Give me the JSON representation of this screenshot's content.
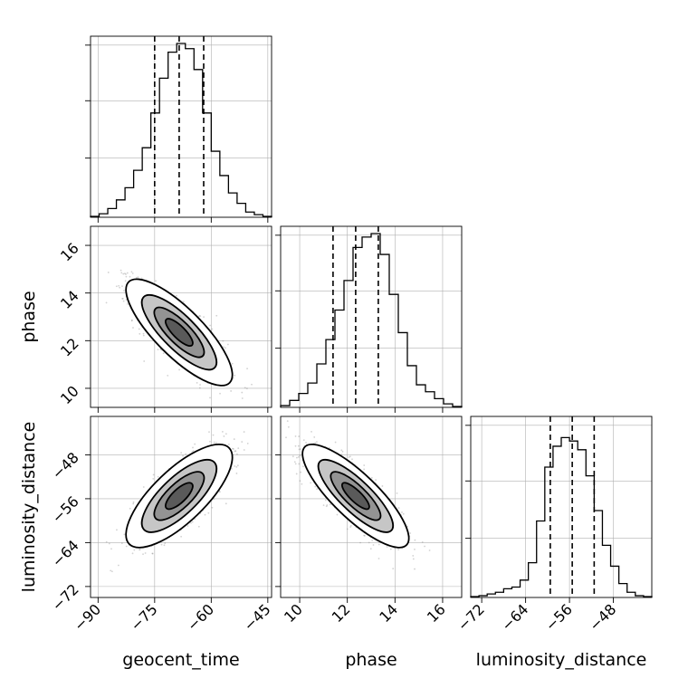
{
  "chart_data": {
    "type": "corner",
    "parameters": [
      "geocent_time",
      "phase",
      "luminosity_distance"
    ],
    "axis_labels": {
      "geocent_time": "geocent_time",
      "phase": "phase",
      "luminosity_distance": "luminosity_distance"
    },
    "ranges": {
      "geocent_time": [
        -92,
        -44
      ],
      "phase": [
        9.2,
        16.8
      ],
      "luminosity_distance": [
        -74,
        -41
      ]
    },
    "ticks": {
      "geocent_time": [
        -90,
        -75,
        -60,
        -45
      ],
      "phase": [
        10,
        12,
        14,
        16
      ],
      "luminosity_distance": [
        -72,
        -64,
        -56,
        -48
      ]
    },
    "tick_labels": {
      "geocent_time": [
        "−90",
        "−75",
        "−60",
        "−45"
      ],
      "phase": [
        "10",
        "12",
        "14",
        "16"
      ],
      "luminosity_distance": [
        "−72",
        "−64",
        "−56",
        "−48"
      ]
    },
    "quantiles": {
      "geocent_time": [
        -75,
        -68.5,
        -62
      ],
      "phase": [
        11.4,
        12.35,
        13.3
      ],
      "luminosity_distance": [
        -59.5,
        -55.5,
        -51.5
      ]
    },
    "histograms": {
      "geocent_time": [
        0.005,
        0.02,
        0.05,
        0.1,
        0.17,
        0.27,
        0.4,
        0.6,
        0.8,
        0.95,
        1.0,
        0.97,
        0.85,
        0.6,
        0.38,
        0.24,
        0.14,
        0.08,
        0.03,
        0.015,
        0.005
      ],
      "phase": [
        0.01,
        0.04,
        0.08,
        0.14,
        0.25,
        0.39,
        0.56,
        0.73,
        0.92,
        0.98,
        1.0,
        0.88,
        0.65,
        0.43,
        0.24,
        0.13,
        0.09,
        0.05,
        0.02,
        0.005
      ],
      "luminosity_distance": [
        0.005,
        0.01,
        0.02,
        0.03,
        0.05,
        0.06,
        0.1,
        0.2,
        0.44,
        0.75,
        0.87,
        0.92,
        0.9,
        0.85,
        0.7,
        0.5,
        0.3,
        0.18,
        0.08,
        0.03,
        0.01,
        0.005
      ]
    },
    "correlations": {
      "geocent_time|phase": -0.8,
      "geocent_time|luminosity_distance": 0.75,
      "phase|luminosity_distance": -0.82
    },
    "stddev": {
      "geocent_time": 6.0,
      "phase": 0.95,
      "luminosity_distance": 4.0
    },
    "contour_levels_sigma": [
      0.5,
      1.0,
      1.5,
      2.0
    ],
    "colors": {
      "line": "#000000",
      "grid": "#b0b0b0",
      "scatter": "#7f7f7f",
      "frame": "#000000"
    },
    "grid": true
  }
}
